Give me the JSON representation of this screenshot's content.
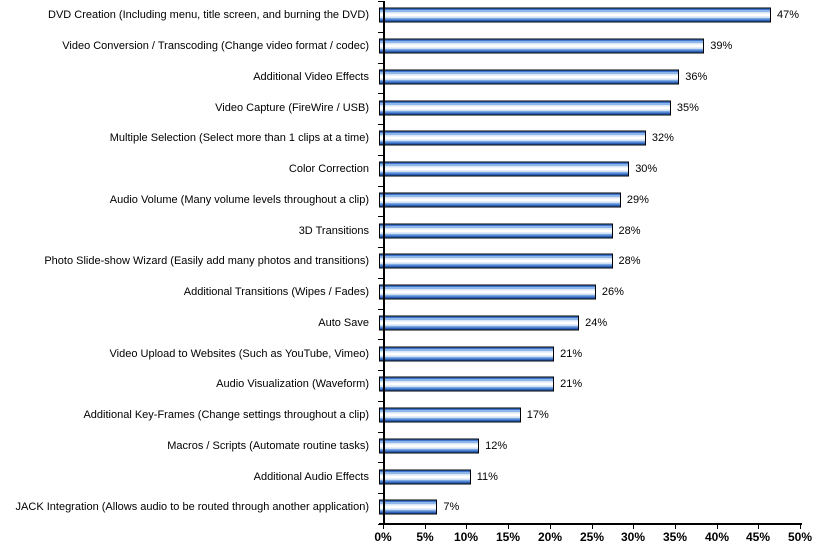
{
  "chart_data": {
    "type": "bar",
    "orientation": "horizontal",
    "title": "",
    "xlabel": "",
    "ylabel": "",
    "xlim": [
      0,
      50
    ],
    "grid": false,
    "legend": false,
    "value_suffix": "%",
    "x_tick_labels": [
      "0%",
      "5%",
      "10%",
      "15%",
      "20%",
      "25%",
      "30%",
      "35%",
      "40%",
      "45%",
      "50%"
    ],
    "x_tick_values": [
      0,
      5,
      10,
      15,
      20,
      25,
      30,
      35,
      40,
      45,
      50
    ],
    "categories": [
      "DVD Creation (Including menu, title screen, and burning the DVD)",
      "Video Conversion / Transcoding (Change video format / codec)",
      "Additional Video Effects",
      "Video Capture (FireWire / USB)",
      "Multiple Selection (Select more than 1 clips at a time)",
      "Color Correction",
      "Audio Volume (Many volume levels throughout a clip)",
      "3D Transitions",
      "Photo Slide-show Wizard (Easily add many photos and transitions)",
      "Additional Transitions (Wipes / Fades)",
      "Auto Save",
      "Video Upload to Websites (Such as YouTube, Vimeo)",
      "Audio Visualization (Waveform)",
      "Additional Key-Frames (Change settings throughout a clip)",
      "Macros / Scripts (Automate routine tasks)",
      "Additional Audio Effects",
      "JACK Integration (Allows audio to be routed through another application)"
    ],
    "values": [
      47,
      39,
      36,
      35,
      32,
      30,
      29,
      28,
      28,
      26,
      24,
      21,
      21,
      17,
      12,
      11,
      7
    ],
    "value_labels": [
      "47%",
      "39%",
      "36%",
      "35%",
      "32%",
      "30%",
      "29%",
      "28%",
      "28%",
      "26%",
      "24%",
      "21%",
      "21%",
      "17%",
      "12%",
      "11%",
      "7%"
    ],
    "colors": {
      "bar_border": "#000000",
      "bar_dark_blue": "#2c62b9",
      "bar_mid_blue": "#3f76cf",
      "bar_light_blue": "#8fb6e9",
      "bar_highlight": "#ffffff",
      "axis": "#000000",
      "text": "#000000",
      "background": "#ffffff"
    }
  }
}
